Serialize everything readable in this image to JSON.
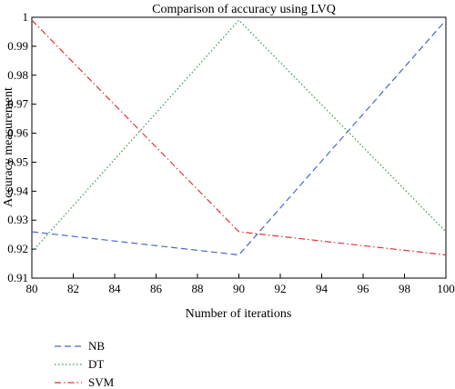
{
  "chart_data": {
    "type": "line",
    "title": "Comparison of accuracy using LVQ",
    "xlabel": "Number of iterations",
    "ylabel": "Accuracy measurement",
    "x": [
      80,
      90,
      100
    ],
    "xlim": [
      80,
      100
    ],
    "ylim": [
      0.91,
      1.0
    ],
    "xticks": [
      "80",
      "82",
      "84",
      "86",
      "88",
      "90",
      "92",
      "94",
      "96",
      "98",
      "100"
    ],
    "yticks": [
      "0.91",
      "0.92",
      "0.93",
      "0.94",
      "0.95",
      "0.96",
      "0.97",
      "0.98",
      "0.99",
      "1"
    ],
    "grid": false,
    "legend_placement": "bottom-left, outside plot",
    "series": [
      {
        "name": "NB",
        "values": [
          0.926,
          0.918,
          0.999
        ],
        "color": "#4a68c8",
        "style": "dashed"
      },
      {
        "name": "DT",
        "values": [
          0.919,
          0.999,
          0.926
        ],
        "color": "#2e9a4a",
        "style": "dotted"
      },
      {
        "name": "SVM",
        "values": [
          0.999,
          0.926,
          0.918
        ],
        "color": "#e0333a",
        "style": "dashdot"
      }
    ]
  }
}
